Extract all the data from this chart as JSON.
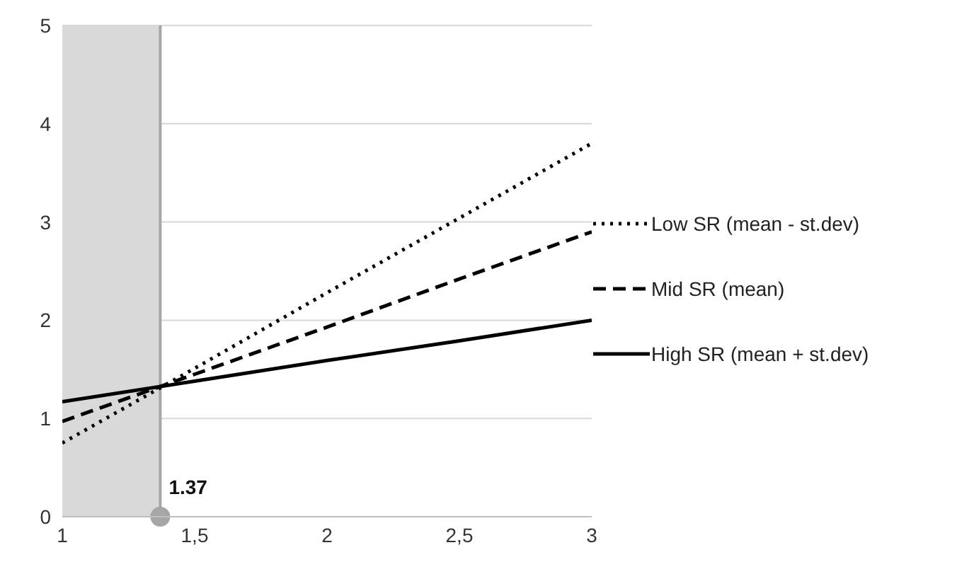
{
  "chart_data": {
    "type": "line",
    "x": [
      1,
      1.5,
      2,
      2.5,
      3
    ],
    "series": [
      {
        "name": "Low SR (mean - st.dev)",
        "color": "#000000",
        "line_style": "dotted",
        "values": [
          0.75,
          1.51,
          2.28,
          3.04,
          3.8
        ]
      },
      {
        "name": "Mid SR (mean)",
        "color": "#000000",
        "line_style": "dashed",
        "values": [
          0.97,
          1.45,
          1.93,
          2.42,
          2.9
        ]
      },
      {
        "name": "High SR (mean + st.dev)",
        "color": "#000000",
        "line_style": "solid",
        "values": [
          1.17,
          1.38,
          1.59,
          1.79,
          2.0
        ]
      }
    ],
    "xlim": [
      1,
      3
    ],
    "xticks": [
      1,
      {
        "value": 1.5,
        "label": "1,5"
      },
      2,
      {
        "value": 2.5,
        "label": "2,5"
      },
      3
    ],
    "ylim": [
      0,
      5
    ],
    "yticks": [
      0,
      1,
      2,
      3,
      4,
      5
    ],
    "grid": "y",
    "legend": "right",
    "marker": "none",
    "bands": [
      {
        "axis": "x",
        "from": 1,
        "to": 1.37,
        "color": "#d9d9d9"
      }
    ],
    "ref_lines": [
      {
        "axis": "x",
        "value": 1.37,
        "label": "1.37",
        "color": "#a6a6a6"
      }
    ]
  }
}
